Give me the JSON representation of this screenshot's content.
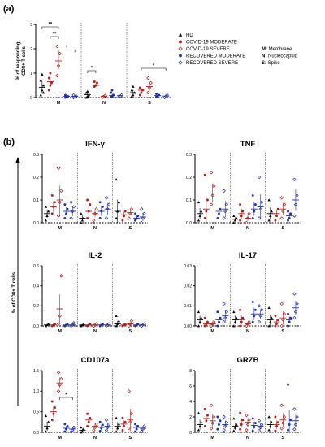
{
  "panel_a_label": "(a)",
  "panel_b_label": "(b)",
  "legend": {
    "groups": [
      {
        "name": "HD",
        "color": "#000000",
        "marker": "triangle"
      },
      {
        "name": "COVID-19 MODERATE",
        "color": "#b01c1c",
        "marker": "circle-filled"
      },
      {
        "name": "COVID-19 SEVERE",
        "color": "#b01c1c",
        "marker": "diamond-open"
      },
      {
        "name": "RECOVERED MODERATE",
        "color": "#1f2fa6",
        "marker": "circle-filled"
      },
      {
        "name": "RECOVERED SEVERE",
        "color": "#1f2fa6",
        "marker": "diamond-open"
      }
    ],
    "key": [
      {
        "abbr": "M:",
        "text": "Membrane"
      },
      {
        "abbr": "N:",
        "text": "Nucleocapsid"
      },
      {
        "abbr": "S:",
        "text": "Spike"
      }
    ]
  },
  "shared_ylabel_b": "% of CD8+ T cells",
  "chart_data": [
    {
      "type": "scatter",
      "title": "",
      "ylabel": "% of responding CD8+ T cells",
      "ylim": [
        0,
        3
      ],
      "yticks": [
        "0",
        "1",
        "2",
        "3"
      ],
      "categories": [
        "M",
        "N",
        "S"
      ],
      "means": [
        [
          0.42,
          0.65,
          1.5,
          0.05,
          0.05
        ],
        [
          0.12,
          0.5,
          0.05,
          0.08,
          0.08
        ],
        [
          0.2,
          0.3,
          0.45,
          0.08,
          0.06
        ]
      ],
      "points": [
        [
          [
            0.1,
            0.3,
            0.5,
            0.7,
            0.95,
            0.2
          ],
          [
            0.3,
            0.5,
            0.6,
            0.8,
            1.0
          ],
          [
            0.9,
            1.3,
            1.8,
            2.1
          ],
          [
            0.0,
            0.02,
            0.05,
            0.1
          ],
          [
            0.0,
            0.03,
            0.06,
            0.1
          ]
        ],
        [
          [
            0.0,
            0.05,
            0.1,
            0.2,
            0.25
          ],
          [
            0.45,
            0.5,
            0.6,
            0.65
          ],
          [
            0.02,
            0.05,
            0.08
          ],
          [
            0.02,
            0.05,
            0.1,
            0.2,
            0.3
          ],
          [
            0.03,
            0.06,
            0.1
          ]
        ],
        [
          [
            0.05,
            0.1,
            0.2,
            0.3,
            0.45
          ],
          [
            0.1,
            0.2,
            0.3,
            0.4
          ],
          [
            0.2,
            0.4,
            0.6,
            0.8
          ],
          [
            0.03,
            0.05,
            0.1,
            0.15
          ],
          [
            0.0,
            0.05,
            0.1
          ]
        ]
      ],
      "significance": [
        {
          "cat": 0,
          "from": 0,
          "to": 2,
          "y": 2.9,
          "label": "**"
        },
        {
          "cat": 0,
          "from": 1,
          "to": 2,
          "y": 2.5,
          "label": "**"
        },
        {
          "cat": 0,
          "from": 2,
          "to": 4,
          "y": 1.95,
          "label": "*"
        },
        {
          "cat": 1,
          "from": 0,
          "to": 1,
          "y": 1.1,
          "label": "*"
        },
        {
          "cat": 2,
          "from": 1,
          "to": 4,
          "y": 1.2,
          "label": "*"
        }
      ]
    },
    {
      "type": "scatter",
      "title": "IFN-γ",
      "ylim": [
        0,
        0.3
      ],
      "yticks": [
        "0.0",
        "0.1",
        "0.2",
        "0.3"
      ],
      "categories": [
        "M",
        "N",
        "S"
      ],
      "means": [
        [
          0.04,
          0.07,
          0.1,
          0.05,
          0.05
        ],
        [
          0.02,
          0.05,
          0.04,
          0.05,
          0.06
        ],
        [
          0.05,
          0.035,
          0.045,
          0.02,
          0.025
        ]
      ],
      "points": [
        [
          [
            0.01,
            0.03,
            0.05,
            0.07
          ],
          [
            0.04,
            0.07,
            0.09,
            0.12
          ],
          [
            0.03,
            0.09,
            0.14,
            0.24
          ],
          [
            0.02,
            0.04,
            0.06,
            0.08
          ],
          [
            0.02,
            0.05,
            0.07,
            0.09
          ]
        ],
        [
          [
            0.0,
            0.01,
            0.02,
            0.04
          ],
          [
            0.02,
            0.05,
            0.08,
            0.1
          ],
          [
            0.01,
            0.04,
            0.06
          ],
          [
            0.02,
            0.05,
            0.07,
            0.09
          ],
          [
            0.02,
            0.06,
            0.08,
            0.11
          ]
        ],
        [
          [
            0.02,
            0.05,
            0.09,
            0.19
          ],
          [
            0.01,
            0.03,
            0.05
          ],
          [
            0.02,
            0.04,
            0.06
          ],
          [
            0.01,
            0.02,
            0.03,
            0.04
          ],
          [
            0.0,
            0.02,
            0.04,
            0.06
          ]
        ]
      ]
    },
    {
      "type": "scatter",
      "title": "TNF",
      "ylim": [
        0,
        0.3
      ],
      "yticks": [
        "0.0",
        "0.1",
        "0.2",
        "0.3"
      ],
      "categories": [
        "M",
        "N",
        "S"
      ],
      "means": [
        [
          0.04,
          0.06,
          0.13,
          0.05,
          0.06
        ],
        [
          0.015,
          0.04,
          0.02,
          0.06,
          0.07
        ],
        [
          0.04,
          0.04,
          0.06,
          0.03,
          0.1
        ]
      ],
      "points": [
        [
          [
            0.01,
            0.03,
            0.05,
            0.09
          ],
          [
            0.02,
            0.05,
            0.1,
            0.21
          ],
          [
            0.08,
            0.12,
            0.16,
            0.22
          ],
          [
            0.02,
            0.04,
            0.06
          ],
          [
            0.02,
            0.05,
            0.08,
            0.14
          ]
        ],
        [
          [
            0.0,
            0.01,
            0.02,
            0.03
          ],
          [
            0.01,
            0.03,
            0.05,
            0.08
          ],
          [
            0.0,
            0.02,
            0.04
          ],
          [
            0.02,
            0.05,
            0.08,
            0.12
          ],
          [
            0.02,
            0.06,
            0.09,
            0.2
          ]
        ],
        [
          [
            0.01,
            0.03,
            0.05,
            0.1
          ],
          [
            0.01,
            0.03,
            0.06
          ],
          [
            0.02,
            0.05,
            0.08,
            0.11
          ],
          [
            0.01,
            0.02,
            0.04,
            0.05
          ],
          [
            0.03,
            0.08,
            0.12,
            0.19
          ]
        ]
      ]
    },
    {
      "type": "scatter",
      "title": "IL-2",
      "ylim": [
        0,
        0.6
      ],
      "yticks": [
        "0.0",
        "0.2",
        "0.4",
        "0.6"
      ],
      "categories": [
        "M",
        "N",
        "S"
      ],
      "means": [
        [
          0.01,
          0.01,
          0.17,
          0.01,
          0.01
        ],
        [
          0.01,
          0.01,
          0.01,
          0.01,
          0.01
        ],
        [
          0.02,
          0.01,
          0.02,
          0.01,
          0.01
        ]
      ],
      "points": [
        [
          [
            0.0,
            0.01,
            0.02
          ],
          [
            0.0,
            0.01,
            0.02
          ],
          [
            0.02,
            0.1,
            0.5
          ],
          [
            0.0,
            0.01,
            0.02
          ],
          [
            0.0,
            0.01,
            0.03
          ]
        ],
        [
          [
            0.0,
            0.01,
            0.02
          ],
          [
            0.0,
            0.01,
            0.02
          ],
          [
            0.0,
            0.01,
            0.02
          ],
          [
            0.0,
            0.01,
            0.02
          ],
          [
            0.0,
            0.01,
            0.02
          ]
        ],
        [
          [
            0.0,
            0.02,
            0.05,
            0.1
          ],
          [
            0.0,
            0.01,
            0.02
          ],
          [
            0.0,
            0.02,
            0.05
          ],
          [
            0.0,
            0.01,
            0.02
          ],
          [
            0.0,
            0.01,
            0.02
          ]
        ]
      ]
    },
    {
      "type": "scatter",
      "title": "IL-17",
      "ylim": [
        0,
        0.03
      ],
      "yticks": [
        "0.00",
        "0.01",
        "0.02",
        "0.03"
      ],
      "categories": [
        "M",
        "N",
        "S"
      ],
      "means": [
        [
          0.003,
          0.001,
          0.001,
          0.003,
          0.005
        ],
        [
          0.003,
          0.003,
          0.001,
          0.006,
          0.006
        ],
        [
          0.003,
          0.002,
          0.004,
          0.003,
          0.009
        ]
      ],
      "points": [
        [
          [
            0.0,
            0.002,
            0.004,
            0.007
          ],
          [
            0.0,
            0.001,
            0.002,
            0.004
          ],
          [
            0.0,
            0.001,
            0.002
          ],
          [
            0.0,
            0.002,
            0.004,
            0.007
          ],
          [
            0.002,
            0.004,
            0.007,
            0.011
          ]
        ],
        [
          [
            0.0,
            0.002,
            0.004,
            0.007
          ],
          [
            0.0,
            0.002,
            0.004,
            0.008
          ],
          [
            0.0,
            0.001,
            0.002
          ],
          [
            0.002,
            0.005,
            0.008,
            0.012
          ],
          [
            0.002,
            0.005,
            0.008,
            0.01
          ]
        ],
        [
          [
            0.0,
            0.002,
            0.004,
            0.009
          ],
          [
            0.0,
            0.001,
            0.003,
            0.005
          ],
          [
            0.0,
            0.003,
            0.006,
            0.011
          ],
          [
            0.0,
            0.002,
            0.004,
            0.006
          ],
          [
            0.004,
            0.007,
            0.011,
            0.016
          ]
        ]
      ]
    },
    {
      "type": "scatter",
      "title": "CD107a",
      "ylim": [
        0,
        1.5
      ],
      "yticks": [
        "0.0",
        "0.5",
        "1.0",
        "1.5"
      ],
      "categories": [
        "M",
        "N",
        "S"
      ],
      "means": [
        [
          0.15,
          0.5,
          1.2,
          0.1,
          0.08
        ],
        [
          0.05,
          0.3,
          0.15,
          0.12,
          0.15
        ],
        [
          0.15,
          0.2,
          0.3,
          0.12,
          0.1
        ]
      ],
      "points": [
        [
          [
            0.02,
            0.1,
            0.25,
            0.4
          ],
          [
            0.3,
            0.45,
            0.6,
            0.75
          ],
          [
            1.0,
            1.15,
            1.3,
            1.45
          ],
          [
            0.02,
            0.08,
            0.15,
            0.2
          ],
          [
            0.01,
            0.05,
            0.12
          ]
        ],
        [
          [
            0.0,
            0.03,
            0.08,
            0.12
          ],
          [
            0.15,
            0.25,
            0.35,
            0.45
          ],
          [
            0.05,
            0.12,
            0.2
          ],
          [
            0.03,
            0.1,
            0.18,
            0.25
          ],
          [
            0.05,
            0.12,
            0.2,
            0.3
          ]
        ],
        [
          [
            0.02,
            0.1,
            0.2,
            0.35
          ],
          [
            0.05,
            0.15,
            0.25,
            0.35
          ],
          [
            0.1,
            0.25,
            0.45,
            1.0
          ],
          [
            0.02,
            0.08,
            0.15,
            0.2
          ],
          [
            0.02,
            0.08,
            0.15
          ]
        ]
      ],
      "significance": [
        {
          "cat": 0,
          "from": 2,
          "to": 4,
          "y": 0.85,
          "label": "*"
        }
      ]
    },
    {
      "type": "scatter",
      "title": "GRZB",
      "ylim": [
        0,
        8
      ],
      "yticks": [
        "0",
        "2",
        "4",
        "6",
        "8"
      ],
      "categories": [
        "M",
        "N",
        "S"
      ],
      "means": [
        [
          1.0,
          1.8,
          1.5,
          1.2,
          1.0
        ],
        [
          0.8,
          1.2,
          1.3,
          0.9,
          0.8
        ],
        [
          1.0,
          1.0,
          1.6,
          1.2,
          1.5
        ]
      ],
      "points": [
        [
          [
            0.3,
            0.8,
            1.3,
            2.5
          ],
          [
            0.8,
            1.5,
            2.2,
            3.0
          ],
          [
            0.5,
            1.2,
            2.0,
            3.5
          ],
          [
            0.4,
            1.0,
            1.5,
            2.0
          ],
          [
            0.3,
            0.8,
            1.3,
            2.0
          ]
        ],
        [
          [
            0.2,
            0.6,
            1.0,
            1.8
          ],
          [
            0.4,
            1.0,
            1.6,
            2.5
          ],
          [
            0.3,
            1.0,
            1.6,
            2.2
          ],
          [
            0.2,
            0.7,
            1.2,
            1.8
          ],
          [
            0.2,
            0.6,
            1.0,
            1.5
          ]
        ],
        [
          [
            0.3,
            0.8,
            1.3,
            2.0
          ],
          [
            0.2,
            0.8,
            1.3,
            2.0
          ],
          [
            0.5,
            1.2,
            2.0,
            3.5
          ],
          [
            0.3,
            1.0,
            1.6,
            6.2
          ],
          [
            0.4,
            1.0,
            2.0,
            3.0
          ]
        ]
      ]
    }
  ]
}
